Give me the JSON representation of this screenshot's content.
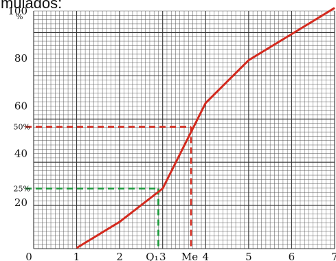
{
  "header_text": "mulados:",
  "chart_data": {
    "type": "line",
    "title": "",
    "xlabel": "",
    "ylabel": "%",
    "xlim": [
      0,
      7
    ],
    "ylim": [
      0,
      100
    ],
    "grid": true,
    "x_ticks": [
      {
        "value": 0,
        "label": "0"
      },
      {
        "value": 1,
        "label": "1"
      },
      {
        "value": 2,
        "label": "2"
      },
      {
        "value": 3,
        "label": "3"
      },
      {
        "value": 4,
        "label": "4"
      },
      {
        "value": 5,
        "label": "5"
      },
      {
        "value": 6,
        "label": "6"
      },
      {
        "value": 7,
        "label": "7"
      }
    ],
    "y_ticks": [
      {
        "value": 20,
        "label": "20"
      },
      {
        "value": 40,
        "label": "40"
      },
      {
        "value": 60,
        "label": "60"
      },
      {
        "value": 80,
        "label": "80"
      },
      {
        "value": 100,
        "label": "100"
      }
    ],
    "series": [
      {
        "color": "#d42a1e",
        "x": [
          1,
          2,
          3,
          4,
          5,
          6,
          7
        ],
        "y": [
          0,
          11,
          25,
          61,
          79,
          90,
          101
        ]
      }
    ],
    "markers": [
      {
        "x_label": "Q₁",
        "y_label": "25%",
        "x": 2.9,
        "y": 25,
        "color": "#1a9a3a"
      },
      {
        "x_label": "Me",
        "y_label": "50%",
        "x": 3.66,
        "y": 51,
        "color": "#d42a1e"
      }
    ]
  }
}
